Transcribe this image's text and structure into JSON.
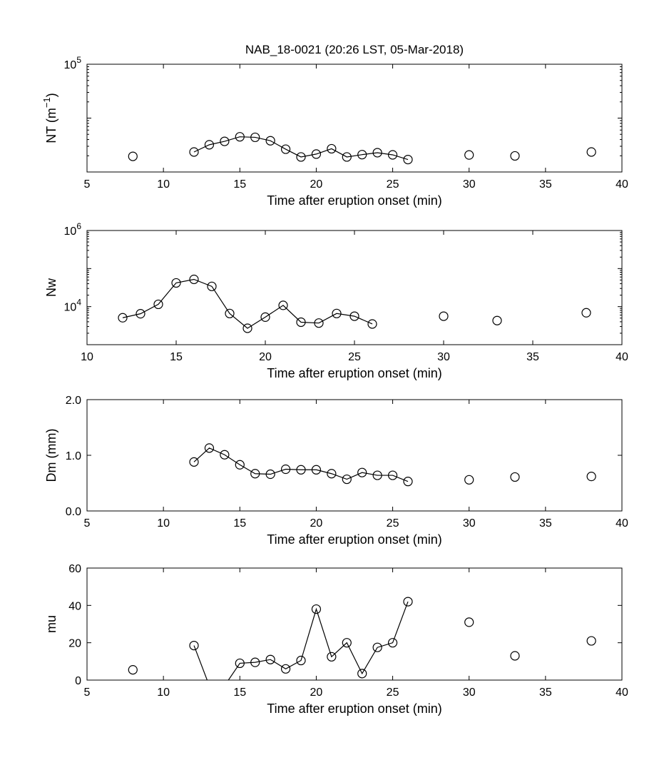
{
  "title": "NAB_18-0021 (20:26 LST, 05-Mar-2018)",
  "chart_data": [
    {
      "type": "line",
      "name": "NT",
      "xlabel": "Time after eruption onset (min)",
      "ylabel": "NT (m-1)",
      "ylabel_base": "NT (m",
      "ylabel_sup": "−1",
      "ylabel_close": ")",
      "xlim": [
        5,
        40
      ],
      "ylim": [
        1000,
        100000
      ],
      "yscale": "log",
      "xticks": [
        5,
        10,
        15,
        20,
        25,
        30,
        35,
        40
      ],
      "yticks": [
        {
          "value": 100000,
          "base": "10",
          "exp": "5"
        }
      ],
      "x": [
        8,
        12,
        13,
        14,
        15,
        16,
        17,
        18,
        19,
        20,
        21,
        22,
        23,
        24,
        25,
        26,
        30,
        33,
        38
      ],
      "y": [
        1950,
        2350,
        3200,
        3700,
        4500,
        4400,
        3800,
        2650,
        1900,
        2150,
        2700,
        1900,
        2100,
        2280,
        2080,
        1700,
        2070,
        1990,
        2350
      ],
      "connected_range": [
        12,
        26
      ]
    },
    {
      "type": "line",
      "name": "Nw",
      "xlabel": "Time after eruption onset (min)",
      "ylabel": "Nw",
      "xlim": [
        10,
        40
      ],
      "ylim": [
        1000,
        1000000
      ],
      "yscale": "log",
      "xticks": [
        10,
        15,
        20,
        25,
        30,
        35,
        40
      ],
      "yticks": [
        {
          "value": 10000,
          "base": "10",
          "exp": "4"
        },
        {
          "value": 1000000,
          "base": "10",
          "exp": "6"
        }
      ],
      "x": [
        12,
        13,
        14,
        15,
        16,
        17,
        18,
        19,
        20,
        21,
        22,
        23,
        24,
        25,
        26,
        30,
        33,
        38
      ],
      "y": [
        5100,
        6500,
        11500,
        42000,
        52000,
        34000,
        6600,
        2700,
        5300,
        10800,
        3900,
        3700,
        6600,
        5600,
        3500,
        5600,
        4300,
        6900
      ],
      "connected_range": [
        12,
        26
      ]
    },
    {
      "type": "line",
      "name": "Dm",
      "xlabel": "Time after eruption onset (min)",
      "ylabel": "Dm (mm)",
      "xlim": [
        5,
        40
      ],
      "ylim": [
        0,
        2
      ],
      "yscale": "linear",
      "xticks": [
        5,
        10,
        15,
        20,
        25,
        30,
        35,
        40
      ],
      "yticks": [
        {
          "value": 0,
          "label": "0.0"
        },
        {
          "value": 1,
          "label": "1.0"
        },
        {
          "value": 2,
          "label": "2.0"
        }
      ],
      "x": [
        12,
        13,
        14,
        15,
        16,
        17,
        18,
        19,
        20,
        21,
        22,
        23,
        24,
        25,
        26,
        30,
        33,
        38
      ],
      "y": [
        0.88,
        1.13,
        1.01,
        0.83,
        0.67,
        0.66,
        0.75,
        0.74,
        0.74,
        0.67,
        0.57,
        0.69,
        0.64,
        0.64,
        0.53,
        0.56,
        0.61,
        0.62
      ],
      "connected_range": [
        12,
        26
      ]
    },
    {
      "type": "line",
      "name": "mu",
      "xlabel": "Time after eruption onset (min)",
      "ylabel": "mu",
      "xlim": [
        5,
        40
      ],
      "ylim": [
        0,
        60
      ],
      "yscale": "linear",
      "xticks": [
        5,
        10,
        15,
        20,
        25,
        30,
        35,
        40
      ],
      "yticks": [
        {
          "value": 0,
          "label": "0"
        },
        {
          "value": 20,
          "label": "20"
        },
        {
          "value": 40,
          "label": "40"
        },
        {
          "value": 60,
          "label": "60"
        }
      ],
      "x": [
        8,
        12,
        13,
        14,
        15,
        16,
        17,
        18,
        19,
        20,
        21,
        22,
        23,
        24,
        25,
        26,
        30,
        33,
        38
      ],
      "y": [
        5.5,
        18.5,
        -3,
        -3,
        9,
        9.5,
        11,
        6,
        10.5,
        38,
        12.5,
        20,
        3.5,
        17.5,
        20,
        42,
        31,
        13,
        21
      ],
      "connected_range": [
        12,
        26
      ],
      "hidden_markers": [
        13,
        14
      ]
    }
  ]
}
